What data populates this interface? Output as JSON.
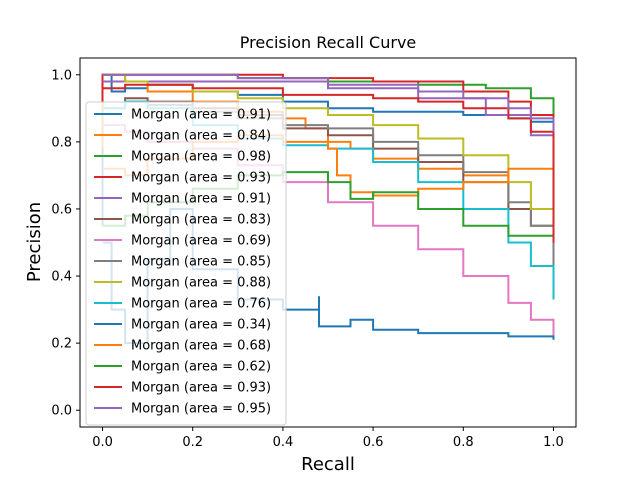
{
  "chart_data": {
    "type": "line",
    "title": "Precision Recall Curve",
    "xlabel": "Recall",
    "ylabel": "Precision",
    "xlim": [
      -0.05,
      1.05
    ],
    "ylim": [
      -0.05,
      1.05
    ],
    "xticks": [
      "0.0",
      "0.2",
      "0.4",
      "0.6",
      "0.8",
      "1.0"
    ],
    "yticks": [
      "0.0",
      "0.2",
      "0.4",
      "0.6",
      "0.8",
      "1.0"
    ],
    "legend_position": "center-left",
    "series": [
      {
        "name": "Morgan (area = 0.91)",
        "color": "#1f77b4",
        "points": [
          [
            0,
            0.55
          ],
          [
            0,
            1.0
          ],
          [
            0.02,
            0.95
          ],
          [
            0.05,
            0.96
          ],
          [
            0.1,
            0.97
          ],
          [
            0.2,
            0.95
          ],
          [
            0.3,
            0.94
          ],
          [
            0.4,
            0.92
          ],
          [
            0.5,
            0.9
          ],
          [
            0.6,
            0.89
          ],
          [
            0.7,
            0.89
          ],
          [
            0.8,
            0.88
          ],
          [
            0.9,
            0.87
          ],
          [
            0.95,
            0.86
          ],
          [
            1.0,
            0.84
          ]
        ]
      },
      {
        "name": "Morgan (area = 0.84)",
        "color": "#ff7f0e",
        "points": [
          [
            0,
            0.78
          ],
          [
            0,
            1.0
          ],
          [
            0.05,
            0.98
          ],
          [
            0.1,
            0.95
          ],
          [
            0.2,
            0.92
          ],
          [
            0.3,
            0.89
          ],
          [
            0.4,
            0.87
          ],
          [
            0.45,
            0.84
          ],
          [
            0.5,
            0.8
          ],
          [
            0.55,
            0.78
          ],
          [
            0.6,
            0.75
          ],
          [
            0.7,
            0.72
          ],
          [
            0.8,
            0.7
          ],
          [
            0.9,
            0.6
          ],
          [
            1.0,
            0.36
          ]
        ]
      },
      {
        "name": "Morgan (area = 0.98)",
        "color": "#2ca02c",
        "points": [
          [
            0,
            1.0
          ],
          [
            0.1,
            1.0
          ],
          [
            0.3,
            0.99
          ],
          [
            0.5,
            0.98
          ],
          [
            0.7,
            0.97
          ],
          [
            0.85,
            0.96
          ],
          [
            0.95,
            0.93
          ],
          [
            1.0,
            0.88
          ]
        ]
      },
      {
        "name": "Morgan (area = 0.93)",
        "color": "#d62728",
        "points": [
          [
            0,
            0.92
          ],
          [
            0,
            1.0
          ],
          [
            0.2,
            1.0
          ],
          [
            0.4,
            0.99
          ],
          [
            0.6,
            0.98
          ],
          [
            0.8,
            0.95
          ],
          [
            0.9,
            0.92
          ],
          [
            0.95,
            0.88
          ],
          [
            1.0,
            0.75
          ]
        ]
      },
      {
        "name": "Morgan (area = 0.91)",
        "color": "#9467bd",
        "points": [
          [
            0,
            0.98
          ],
          [
            0.1,
            0.98
          ],
          [
            0.3,
            0.98
          ],
          [
            0.5,
            0.96
          ],
          [
            0.7,
            0.93
          ],
          [
            0.85,
            0.88
          ],
          [
            0.95,
            0.82
          ],
          [
            1.0,
            0.66
          ]
        ]
      },
      {
        "name": "Morgan (area = 0.83)",
        "color": "#8c564b",
        "points": [
          [
            0,
            0.9
          ],
          [
            0.05,
            0.93
          ],
          [
            0.1,
            0.92
          ],
          [
            0.2,
            0.9
          ],
          [
            0.3,
            0.88
          ],
          [
            0.4,
            0.84
          ],
          [
            0.5,
            0.82
          ],
          [
            0.6,
            0.78
          ],
          [
            0.7,
            0.74
          ],
          [
            0.8,
            0.68
          ],
          [
            0.9,
            0.6
          ],
          [
            0.95,
            0.55
          ],
          [
            1.0,
            0.48
          ]
        ]
      },
      {
        "name": "Morgan (area = 0.69)",
        "color": "#e377c2",
        "points": [
          [
            0,
            0.85
          ],
          [
            0.05,
            0.83
          ],
          [
            0.1,
            0.8
          ],
          [
            0.2,
            0.78
          ],
          [
            0.3,
            0.73
          ],
          [
            0.4,
            0.68
          ],
          [
            0.5,
            0.62
          ],
          [
            0.6,
            0.55
          ],
          [
            0.7,
            0.48
          ],
          [
            0.8,
            0.4
          ],
          [
            0.9,
            0.32
          ],
          [
            0.95,
            0.27
          ],
          [
            1.0,
            0.22
          ]
        ]
      },
      {
        "name": "Morgan (area = 0.85)",
        "color": "#7f7f7f",
        "points": [
          [
            0,
            0.9
          ],
          [
            0.05,
            0.92
          ],
          [
            0.1,
            0.91
          ],
          [
            0.2,
            0.89
          ],
          [
            0.3,
            0.87
          ],
          [
            0.4,
            0.85
          ],
          [
            0.5,
            0.84
          ],
          [
            0.6,
            0.8
          ],
          [
            0.7,
            0.76
          ],
          [
            0.8,
            0.71
          ],
          [
            0.9,
            0.62
          ],
          [
            0.95,
            0.55
          ],
          [
            1.0,
            0.43
          ]
        ]
      },
      {
        "name": "Morgan (area = 0.88)",
        "color": "#bcbd22",
        "points": [
          [
            0,
            1.0
          ],
          [
            0.05,
            0.98
          ],
          [
            0.1,
            0.97
          ],
          [
            0.2,
            0.95
          ],
          [
            0.3,
            0.93
          ],
          [
            0.4,
            0.9
          ],
          [
            0.5,
            0.88
          ],
          [
            0.6,
            0.85
          ],
          [
            0.7,
            0.81
          ],
          [
            0.8,
            0.76
          ],
          [
            0.9,
            0.68
          ],
          [
            0.95,
            0.6
          ],
          [
            1.0,
            0.5
          ]
        ]
      },
      {
        "name": "Morgan (area = 0.76)",
        "color": "#17becf",
        "points": [
          [
            0,
            0.9
          ],
          [
            0.05,
            0.92
          ],
          [
            0.1,
            0.9
          ],
          [
            0.2,
            0.85
          ],
          [
            0.3,
            0.81
          ],
          [
            0.4,
            0.79
          ],
          [
            0.5,
            0.78
          ],
          [
            0.6,
            0.74
          ],
          [
            0.7,
            0.68
          ],
          [
            0.8,
            0.6
          ],
          [
            0.9,
            0.5
          ],
          [
            0.95,
            0.43
          ],
          [
            1.0,
            0.33
          ]
        ]
      },
      {
        "name": "Morgan (area = 0.34)",
        "color": "#1f77b4",
        "points": [
          [
            0,
            0.5
          ],
          [
            0.02,
            0.3
          ],
          [
            0.05,
            0.2
          ],
          [
            0.1,
            0.45
          ],
          [
            0.15,
            0.6
          ],
          [
            0.2,
            0.42
          ],
          [
            0.3,
            0.33
          ],
          [
            0.4,
            0.3
          ],
          [
            0.48,
            0.34
          ],
          [
            0.48,
            0.25
          ],
          [
            0.55,
            0.27
          ],
          [
            0.6,
            0.24
          ],
          [
            0.7,
            0.23
          ],
          [
            0.8,
            0.23
          ],
          [
            0.9,
            0.22
          ],
          [
            1.0,
            0.21
          ]
        ]
      },
      {
        "name": "Morgan (area = 0.68)",
        "color": "#ff7f0e",
        "points": [
          [
            0,
            0.72
          ],
          [
            0.05,
            0.7
          ],
          [
            0.1,
            0.75
          ],
          [
            0.2,
            0.8
          ],
          [
            0.3,
            0.82
          ],
          [
            0.4,
            0.8
          ],
          [
            0.5,
            0.78
          ],
          [
            0.52,
            0.7
          ],
          [
            0.55,
            0.65
          ],
          [
            0.6,
            0.64
          ],
          [
            0.7,
            0.66
          ],
          [
            0.8,
            0.68
          ],
          [
            0.9,
            0.72
          ],
          [
            1.0,
            0.75
          ]
        ]
      },
      {
        "name": "Morgan (area = 0.62)",
        "color": "#2ca02c",
        "points": [
          [
            0,
            0.55
          ],
          [
            0.05,
            0.58
          ],
          [
            0.1,
            0.62
          ],
          [
            0.2,
            0.66
          ],
          [
            0.3,
            0.7
          ],
          [
            0.4,
            0.71
          ],
          [
            0.5,
            0.68
          ],
          [
            0.55,
            0.63
          ],
          [
            0.6,
            0.65
          ],
          [
            0.7,
            0.6
          ],
          [
            0.8,
            0.55
          ],
          [
            0.9,
            0.52
          ],
          [
            1.0,
            0.52
          ]
        ]
      },
      {
        "name": "Morgan (area = 0.93)",
        "color": "#d62728",
        "points": [
          [
            0,
            0.96
          ],
          [
            0.05,
            0.97
          ],
          [
            0.2,
            0.96
          ],
          [
            0.4,
            0.94
          ],
          [
            0.6,
            0.93
          ],
          [
            0.7,
            0.92
          ],
          [
            0.8,
            0.9
          ],
          [
            0.9,
            0.87
          ],
          [
            0.95,
            0.83
          ],
          [
            1.0,
            0.5
          ]
        ]
      },
      {
        "name": "Morgan (area = 0.95)",
        "color": "#9467bd",
        "points": [
          [
            0,
            1.0
          ],
          [
            0.1,
            1.0
          ],
          [
            0.3,
            0.99
          ],
          [
            0.5,
            0.97
          ],
          [
            0.7,
            0.95
          ],
          [
            0.8,
            0.93
          ],
          [
            0.9,
            0.9
          ],
          [
            0.95,
            0.87
          ],
          [
            1.0,
            0.83
          ]
        ]
      }
    ]
  }
}
